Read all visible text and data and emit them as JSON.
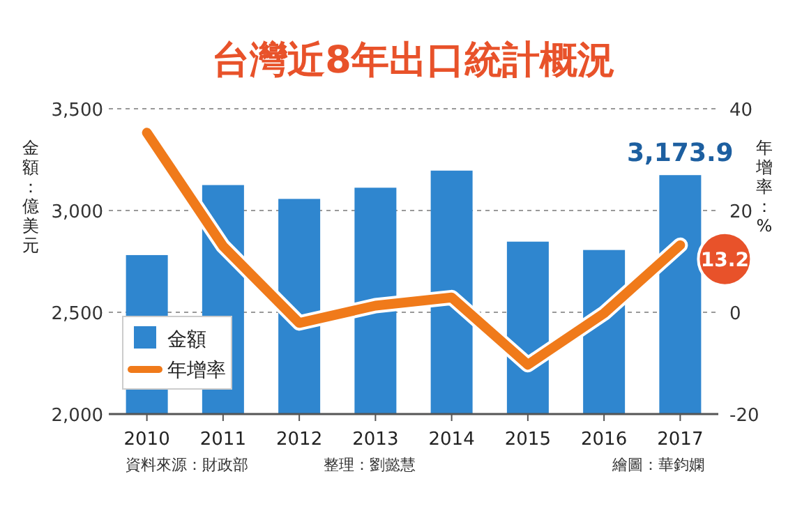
{
  "chart_data": {
    "type": "bar",
    "title": "台灣近8年出口統計概況",
    "ylabel": "金額：億美元",
    "y2label": "年增率：%",
    "categories": [
      "2010",
      "2011",
      "2012",
      "2013",
      "2014",
      "2015",
      "2016",
      "2017"
    ],
    "series": [
      {
        "name": "金額",
        "color": "#2f86cf",
        "values": [
          2781,
          3125,
          3057,
          3112,
          3196,
          2847,
          2806,
          3173.9
        ],
        "value_labels": [
          null,
          null,
          null,
          null,
          null,
          null,
          null,
          "3,173.9"
        ]
      },
      {
        "name": "年增率",
        "type": "line",
        "axis": "y2",
        "color": "#f07a1a",
        "values": [
          35.3,
          13.0,
          -2.1,
          1.3,
          2.9,
          -10.3,
          -0.2,
          13.2
        ],
        "value_labels": [
          null,
          null,
          null,
          null,
          null,
          null,
          null,
          "13.2"
        ]
      }
    ],
    "ylim": [
      2000,
      3500
    ],
    "yticks": [
      {
        "value": 2000,
        "label": "2,000"
      },
      {
        "value": 2500,
        "label": "2,500"
      },
      {
        "value": 3000,
        "label": "3,000"
      },
      {
        "value": 3500,
        "label": "3,500"
      }
    ],
    "y2lim": [
      -20,
      40
    ],
    "y2ticks": [
      -20,
      0,
      20,
      40
    ],
    "grid": "y",
    "legend": "bottom left",
    "line_style": "solid",
    "marker": "none",
    "annotations": [
      "資料來源：財政部",
      "整理：劉懿慧",
      "繪圖：華鈞嫻"
    ]
  }
}
